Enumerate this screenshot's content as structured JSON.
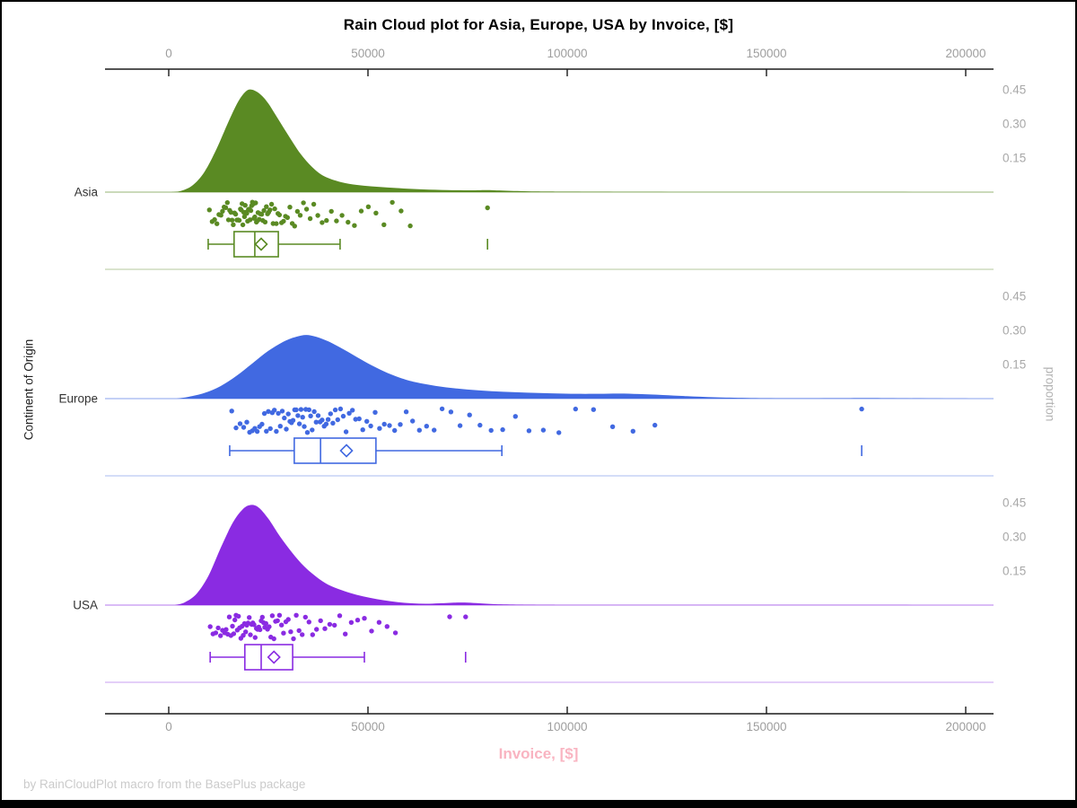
{
  "frame": {
    "title": "Rain Cloud plot for Asia, Europe, USA by Invoice, [$]",
    "footer": "by RainCloudPlot macro from the BasePlus package"
  },
  "axes": {
    "x": {
      "label": "Invoice, [$]",
      "ticks": [
        0,
        50000,
        100000,
        150000,
        200000
      ],
      "tick_labels": [
        "0",
        "50000",
        "100000",
        "150000",
        "200000"
      ],
      "range": [
        -16000,
        207000
      ],
      "label_color": "#f9b4c1",
      "tick_color": "#9e9e9e",
      "line_color": "#1a1a1a"
    },
    "y_left": {
      "label": "Continent of Origin",
      "categories": [
        "Asia",
        "Europe",
        "USA"
      ]
    },
    "y_right": {
      "label": "proportion",
      "ticks": [
        0.45,
        0.3,
        0.15
      ],
      "tick_labels": [
        "0.45",
        "0.30",
        "0.15"
      ],
      "tick_color": "#a8a8a8"
    }
  },
  "chart_data": {
    "type": "raincloud",
    "title": "Rain Cloud plot for Asia, Europe, USA by Invoice, [$]",
    "xlabel": "Invoice, [$]",
    "ylabel_left": "Continent of Origin",
    "ylabel_right": "proportion",
    "xlim": [
      -16000,
      207000
    ],
    "proportion_ticks": [
      0.15,
      0.3,
      0.45
    ],
    "series": [
      {
        "name": "Asia",
        "color": "#5a8a23",
        "density": [
          [
            500,
            0
          ],
          [
            3000,
            0.005
          ],
          [
            6000,
            0.03
          ],
          [
            9000,
            0.09
          ],
          [
            12000,
            0.19
          ],
          [
            15000,
            0.31
          ],
          [
            17500,
            0.4
          ],
          [
            19500,
            0.445
          ],
          [
            21000,
            0.45
          ],
          [
            23000,
            0.43
          ],
          [
            25000,
            0.39
          ],
          [
            27500,
            0.32
          ],
          [
            30000,
            0.25
          ],
          [
            33000,
            0.17
          ],
          [
            36000,
            0.11
          ],
          [
            39000,
            0.07
          ],
          [
            43000,
            0.045
          ],
          [
            47000,
            0.032
          ],
          [
            51000,
            0.025
          ],
          [
            55000,
            0.02
          ],
          [
            59000,
            0.016
          ],
          [
            64000,
            0.012
          ],
          [
            70000,
            0.009
          ],
          [
            76000,
            0.008
          ],
          [
            80000,
            0.009
          ],
          [
            85000,
            0.006
          ],
          [
            92000,
            0.003
          ],
          [
            100000,
            0.002
          ],
          [
            115000,
            0.001
          ],
          [
            140000,
            0.0005
          ],
          [
            170000,
            0.0003
          ],
          [
            200000,
            0.0002
          ]
        ],
        "points": [
          10200,
          10900,
          11500,
          12100,
          12600,
          13100,
          13500,
          13900,
          14300,
          14700,
          15000,
          15300,
          15600,
          15900,
          16200,
          16500,
          16800,
          17100,
          17400,
          17700,
          18000,
          18200,
          18400,
          18600,
          18800,
          19000,
          19200,
          19400,
          19600,
          19800,
          20000,
          20200,
          20400,
          20600,
          20800,
          21000,
          21200,
          21400,
          21600,
          21800,
          22000,
          22200,
          22400,
          22700,
          23000,
          23300,
          23600,
          23900,
          24200,
          24500,
          24800,
          25100,
          25400,
          25800,
          26200,
          26600,
          27000,
          27400,
          27800,
          28300,
          28800,
          29300,
          29800,
          30400,
          31000,
          31600,
          32300,
          33000,
          33800,
          34600,
          35500,
          36400,
          37400,
          38500,
          39600,
          40800,
          42100,
          43500,
          45000,
          46600,
          48300,
          50100,
          52000,
          54000,
          56100,
          58300,
          60600,
          80000
        ],
        "box": {
          "whisker_low": 9900,
          "q1": 16400,
          "median": 21600,
          "mean": 23200,
          "q3": 27500,
          "whisker_high": 43000,
          "outliers": [
            80000
          ]
        }
      },
      {
        "name": "Europe",
        "color": "#4169e1",
        "density": [
          [
            2000,
            0
          ],
          [
            5000,
            0.008
          ],
          [
            9000,
            0.025
          ],
          [
            13000,
            0.055
          ],
          [
            17000,
            0.1
          ],
          [
            21000,
            0.155
          ],
          [
            25000,
            0.21
          ],
          [
            29000,
            0.252
          ],
          [
            32000,
            0.272
          ],
          [
            34500,
            0.28
          ],
          [
            37000,
            0.272
          ],
          [
            40000,
            0.252
          ],
          [
            43000,
            0.225
          ],
          [
            46500,
            0.19
          ],
          [
            50000,
            0.155
          ],
          [
            54000,
            0.12
          ],
          [
            58000,
            0.092
          ],
          [
            62000,
            0.072
          ],
          [
            67000,
            0.056
          ],
          [
            72000,
            0.045
          ],
          [
            78000,
            0.036
          ],
          [
            84000,
            0.03
          ],
          [
            90000,
            0.026
          ],
          [
            96000,
            0.023
          ],
          [
            102000,
            0.021
          ],
          [
            108000,
            0.021
          ],
          [
            113000,
            0.022
          ],
          [
            118000,
            0.02
          ],
          [
            124000,
            0.016
          ],
          [
            130000,
            0.011
          ],
          [
            137000,
            0.006
          ],
          [
            145000,
            0.003
          ],
          [
            155000,
            0.0015
          ],
          [
            168000,
            0.002
          ],
          [
            176000,
            0.0025
          ],
          [
            184000,
            0.0015
          ],
          [
            195000,
            0.0005
          ],
          [
            207000,
            0
          ]
        ],
        "points": [
          15800,
          16900,
          17900,
          18800,
          19600,
          20300,
          21000,
          21600,
          22200,
          22800,
          23400,
          24000,
          24500,
          25000,
          25500,
          26000,
          26500,
          27000,
          27500,
          28000,
          28500,
          29000,
          29500,
          30000,
          30400,
          30800,
          31200,
          31600,
          32000,
          32400,
          32800,
          33200,
          33600,
          34000,
          34400,
          34800,
          35200,
          35600,
          36000,
          36500,
          37000,
          37500,
          38000,
          38500,
          39000,
          39500,
          40000,
          40600,
          41200,
          41800,
          42400,
          43100,
          43800,
          44500,
          45300,
          46100,
          46900,
          47800,
          48700,
          49700,
          50700,
          51800,
          52900,
          54100,
          55400,
          56700,
          58100,
          59600,
          61200,
          62900,
          64700,
          66600,
          68600,
          70800,
          73100,
          75500,
          78100,
          80900,
          83800,
          87000,
          90400,
          94000,
          97900,
          102100,
          106600,
          111400,
          116500,
          122000,
          173900
        ],
        "box": {
          "whisker_low": 15300,
          "q1": 31500,
          "median": 38100,
          "mean": 44600,
          "q3": 52000,
          "whisker_high": 83600,
          "outliers": [
            173900
          ]
        }
      },
      {
        "name": "USA",
        "color": "#8a2be2",
        "density": [
          [
            1500,
            0
          ],
          [
            4000,
            0.012
          ],
          [
            7000,
            0.05
          ],
          [
            10000,
            0.13
          ],
          [
            13000,
            0.25
          ],
          [
            16000,
            0.36
          ],
          [
            18500,
            0.42
          ],
          [
            20500,
            0.44
          ],
          [
            22500,
            0.43
          ],
          [
            25000,
            0.38
          ],
          [
            28000,
            0.3
          ],
          [
            31000,
            0.23
          ],
          [
            34000,
            0.17
          ],
          [
            37000,
            0.125
          ],
          [
            40000,
            0.09
          ],
          [
            43500,
            0.065
          ],
          [
            47000,
            0.046
          ],
          [
            50500,
            0.032
          ],
          [
            54000,
            0.021
          ],
          [
            57500,
            0.013
          ],
          [
            61000,
            0.008
          ],
          [
            64500,
            0.006
          ],
          [
            68000,
            0.008
          ],
          [
            72000,
            0.011
          ],
          [
            75000,
            0.011
          ],
          [
            78000,
            0.008
          ],
          [
            82000,
            0.004
          ],
          [
            88000,
            0.002
          ],
          [
            95000,
            0.001
          ],
          [
            110000,
            0.0005
          ],
          [
            200000,
            0.0002
          ]
        ],
        "points": [
          10400,
          11100,
          11800,
          12400,
          13000,
          13500,
          14000,
          14400,
          14800,
          15200,
          15600,
          16000,
          16300,
          16600,
          16900,
          17200,
          17500,
          17800,
          18100,
          18400,
          18700,
          19000,
          19300,
          19600,
          19900,
          20200,
          20500,
          20800,
          21100,
          21400,
          21700,
          22000,
          22300,
          22600,
          22900,
          23200,
          23500,
          23800,
          24100,
          24400,
          24800,
          25200,
          25600,
          26000,
          26400,
          26800,
          27300,
          27800,
          28300,
          28800,
          29400,
          30000,
          30600,
          31300,
          32000,
          32700,
          33500,
          34300,
          35200,
          36100,
          37100,
          38100,
          39200,
          40400,
          41600,
          42900,
          44300,
          45800,
          47400,
          49100,
          50900,
          52800,
          54800,
          56900,
          70500,
          74500
        ],
        "box": {
          "whisker_low": 10400,
          "q1": 19100,
          "median": 23200,
          "mean": 26400,
          "q3": 31100,
          "whisker_high": 49100,
          "outliers": [
            74500
          ]
        }
      }
    ]
  }
}
